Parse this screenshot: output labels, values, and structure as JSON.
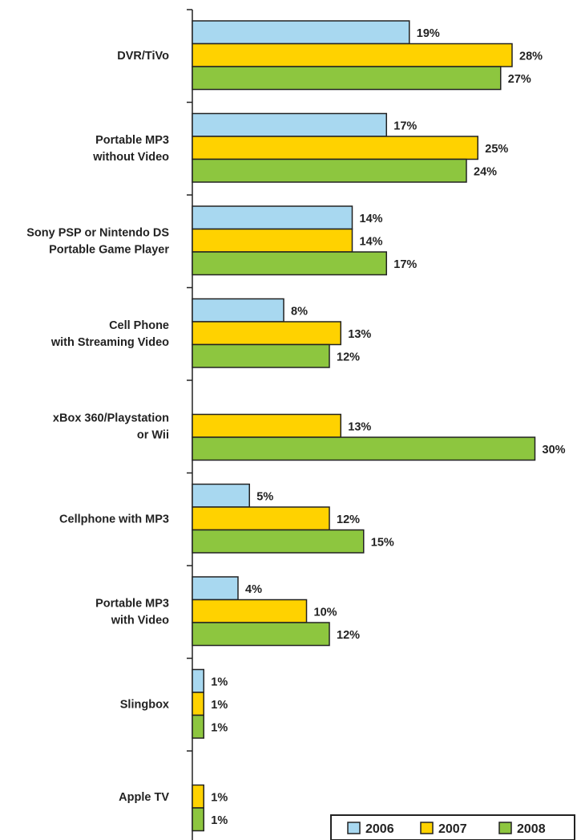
{
  "chart_data": {
    "type": "bar",
    "orientation": "horizontal",
    "categories": [
      [
        "DVR/TiVo"
      ],
      [
        "Portable MP3",
        "without Video"
      ],
      [
        "Sony PSP or Nintendo DS",
        "Portable Game Player"
      ],
      [
        "Cell Phone",
        "with Streaming Video"
      ],
      [
        "xBox 360/Playstation",
        "or Wii"
      ],
      [
        "Cellphone with MP3"
      ],
      [
        "Portable MP3",
        "with Video"
      ],
      [
        "Slingbox"
      ],
      [
        "Apple TV"
      ]
    ],
    "series": [
      {
        "name": "2006",
        "color": "#a8d8f0",
        "values": [
          19,
          17,
          14,
          8,
          null,
          5,
          4,
          1,
          null
        ]
      },
      {
        "name": "2007",
        "color": "#ffd200",
        "values": [
          28,
          25,
          14,
          13,
          13,
          12,
          10,
          1,
          1
        ]
      },
      {
        "name": "2008",
        "color": "#8dc63f",
        "values": [
          27,
          24,
          17,
          12,
          30,
          15,
          12,
          1,
          1
        ]
      }
    ],
    "value_suffix": "%",
    "xlim": [
      0,
      30
    ],
    "legend": {
      "placement": "bottom-right",
      "entries": [
        "2006",
        "2007",
        "2008"
      ]
    },
    "grid": false
  }
}
